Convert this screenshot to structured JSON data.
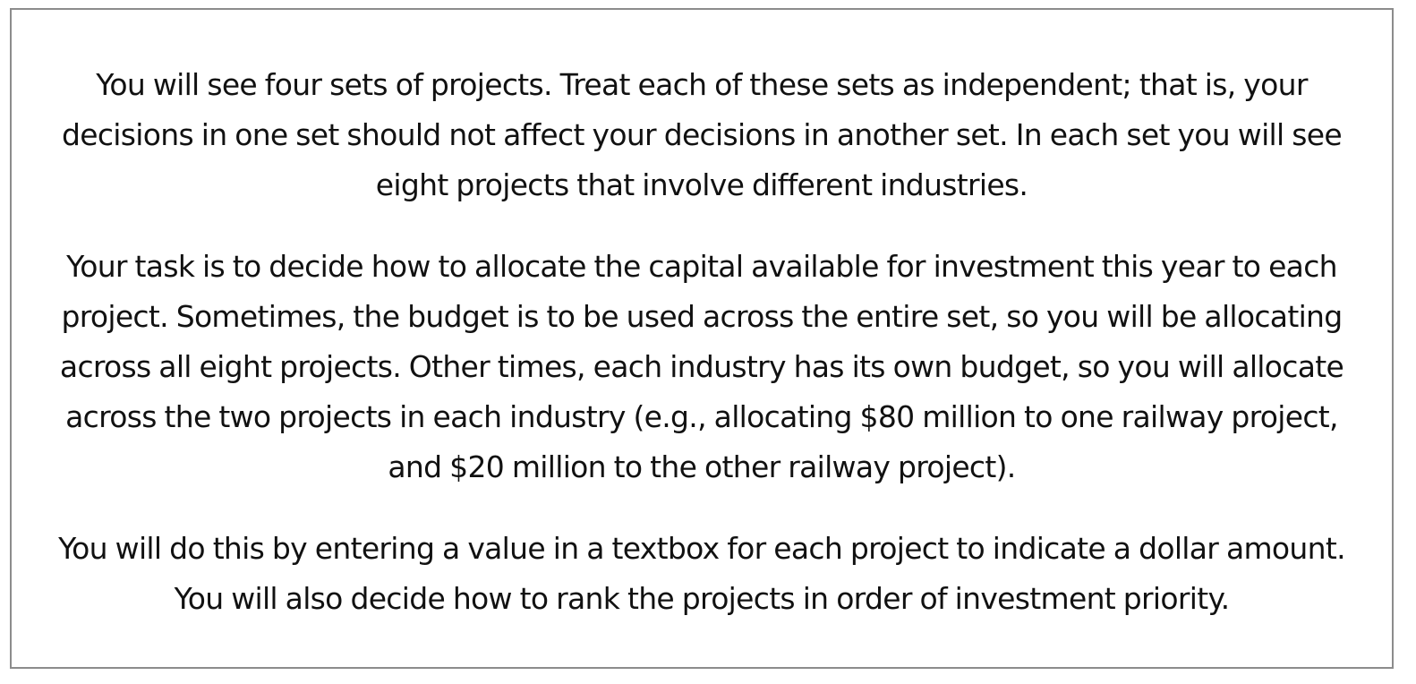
{
  "instructions": {
    "paragraphs": [
      "You will see four sets of projects. Treat each of these sets as independent; that is, your decisions in one set should not affect your decisions in another set. In each set you will see eight projects that involve different industries.",
      "Your task is to decide how to allocate the capital available for investment this year to each project. Sometimes, the budget is to be used across the entire set, so you will be allocating across all eight projects. Other times, each industry has its own budget, so you will allocate across the two projects in each industry (e.g., allocating $80 million to one railway project, and $20 million to the other railway project).",
      "You will do this by entering a value in a textbox for each project to indicate a dollar amount. You will also decide how to rank the projects in order of investment priority."
    ]
  },
  "colors": {
    "border": "#8c8c8c",
    "text": "#111111",
    "background": "#ffffff"
  }
}
